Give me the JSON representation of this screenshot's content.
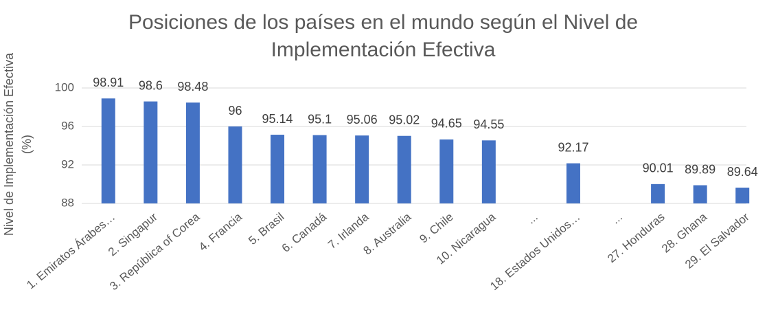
{
  "chart_data": {
    "type": "bar",
    "title": [
      "Posiciones de los países en el mundo según el Nivel de",
      "Implementación Efectiva"
    ],
    "y_label": [
      "Nivel de Implementación Efectiva",
      "(%)"
    ],
    "categories": [
      "1. Emiratos Árabes…",
      "2. Singapur",
      "3. República of Corea",
      "4. Francia",
      "5. Brasil",
      "6. Canadá",
      "7. Irlanda",
      "8. Australia",
      "9. Chile",
      "10. Nicaragua",
      "...",
      "18. Estados Unidos…",
      "...",
      "27. Honduras",
      "28. Ghana",
      "29. El Salvador"
    ],
    "values": [
      98.91,
      98.6,
      98.48,
      96,
      95.14,
      95.1,
      95.06,
      95.02,
      94.65,
      94.55,
      null,
      92.17,
      null,
      90.01,
      89.89,
      89.64
    ],
    "color": "#4472c4",
    "ylim": [
      88,
      100
    ],
    "yticks": [
      88,
      92,
      96,
      100
    ],
    "grid": true
  }
}
